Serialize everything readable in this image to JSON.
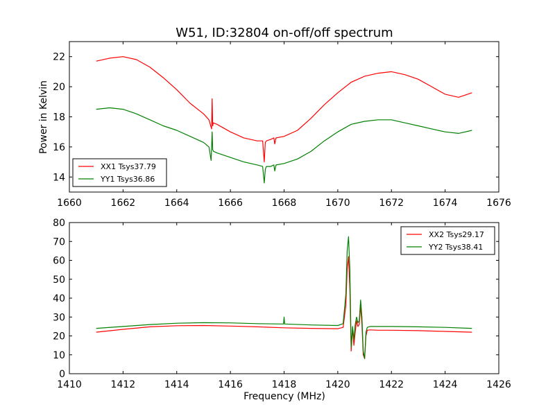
{
  "chart_data": [
    {
      "type": "line",
      "title": "W51, ID:32804 on-off/off spectrum",
      "xlabel": "",
      "ylabel": "Power in Kelvin",
      "xlim": [
        1660,
        1676
      ],
      "ylim": [
        13,
        23
      ],
      "xticks": [
        "1660",
        "1662",
        "1664",
        "1666",
        "1668",
        "1670",
        "1672",
        "1674",
        "1676"
      ],
      "yticks": [
        "14",
        "16",
        "18",
        "20",
        "22"
      ],
      "grid": false,
      "legend_position": "lower-left",
      "series": [
        {
          "name": "XX1 Tsys37.79",
          "color": "#ff0000",
          "x": [
            1661.0,
            1661.5,
            1662.0,
            1662.5,
            1663.0,
            1663.5,
            1664.0,
            1664.5,
            1665.0,
            1665.2,
            1665.3,
            1665.32,
            1665.34,
            1665.36,
            1665.5,
            1666.0,
            1666.5,
            1667.0,
            1667.2,
            1667.26,
            1667.3,
            1667.34,
            1667.5,
            1667.62,
            1667.65,
            1667.7,
            1668.0,
            1668.5,
            1669.0,
            1669.5,
            1670.0,
            1670.5,
            1671.0,
            1671.5,
            1672.0,
            1672.5,
            1673.0,
            1673.5,
            1674.0,
            1674.5,
            1675.0
          ],
          "y": [
            21.7,
            21.9,
            22.0,
            21.8,
            21.3,
            20.6,
            19.8,
            18.9,
            18.2,
            17.8,
            17.2,
            19.2,
            17.4,
            17.6,
            17.5,
            17.0,
            16.6,
            16.4,
            16.4,
            15.0,
            16.3,
            16.4,
            16.5,
            16.6,
            16.2,
            16.6,
            16.7,
            17.1,
            17.9,
            18.8,
            19.6,
            20.3,
            20.7,
            20.9,
            21.0,
            20.8,
            20.5,
            20.0,
            19.5,
            19.3,
            19.6
          ]
        },
        {
          "name": "YY1 Tsys36.86",
          "color": "#008000",
          "x": [
            1661.0,
            1661.5,
            1662.0,
            1662.5,
            1663.0,
            1663.5,
            1664.0,
            1664.5,
            1665.0,
            1665.2,
            1665.28,
            1665.32,
            1665.34,
            1665.38,
            1665.5,
            1666.0,
            1666.5,
            1667.0,
            1667.2,
            1667.26,
            1667.3,
            1667.34,
            1667.5,
            1667.62,
            1667.65,
            1667.7,
            1668.0,
            1668.5,
            1669.0,
            1669.5,
            1670.0,
            1670.5,
            1671.0,
            1671.5,
            1672.0,
            1672.5,
            1673.0,
            1673.5,
            1674.0,
            1674.5,
            1675.0
          ],
          "y": [
            18.5,
            18.6,
            18.5,
            18.2,
            17.8,
            17.4,
            17.1,
            16.7,
            16.3,
            16.0,
            15.1,
            17.0,
            15.8,
            15.7,
            15.6,
            15.3,
            15.0,
            14.8,
            14.7,
            13.6,
            14.5,
            14.7,
            14.7,
            14.8,
            14.4,
            14.8,
            14.9,
            15.2,
            15.7,
            16.4,
            17.0,
            17.5,
            17.7,
            17.8,
            17.8,
            17.6,
            17.4,
            17.2,
            17.0,
            16.9,
            17.1
          ]
        }
      ]
    },
    {
      "type": "line",
      "title": "",
      "xlabel": "Frequency (MHz)",
      "ylabel": "",
      "xlim": [
        1410,
        1426
      ],
      "ylim": [
        0,
        80
      ],
      "xticks": [
        "1410",
        "1412",
        "1414",
        "1416",
        "1418",
        "1420",
        "1422",
        "1424",
        "1426"
      ],
      "yticks": [
        "0",
        "10",
        "20",
        "30",
        "40",
        "50",
        "60",
        "70",
        "80"
      ],
      "grid": false,
      "legend_position": "upper-right",
      "series": [
        {
          "name": "XX2 Tsys29.17",
          "color": "#ff0000",
          "x": [
            1411.0,
            1412.0,
            1413.0,
            1414.0,
            1415.0,
            1416.0,
            1417.0,
            1418.0,
            1419.0,
            1420.0,
            1420.2,
            1420.3,
            1420.35,
            1420.4,
            1420.45,
            1420.5,
            1420.55,
            1420.6,
            1420.65,
            1420.7,
            1420.75,
            1420.8,
            1420.85,
            1420.9,
            1420.95,
            1421.0,
            1421.05,
            1421.1,
            1421.2,
            1421.5,
            1422.0,
            1423.0,
            1424.0,
            1425.0
          ],
          "y": [
            22.0,
            23.5,
            24.8,
            25.4,
            25.5,
            25.2,
            24.8,
            24.3,
            24.0,
            23.8,
            24.5,
            36.0,
            55.0,
            62.0,
            45.0,
            12.0,
            24.0,
            15.0,
            22.0,
            28.0,
            25.0,
            26.0,
            36.0,
            26.0,
            10.0,
            8.0,
            20.0,
            23.0,
            23.2,
            23.0,
            23.0,
            22.8,
            22.4,
            22.0
          ]
        },
        {
          "name": "YY2 Tsys38.41",
          "color": "#008000",
          "x": [
            1411.0,
            1412.0,
            1413.0,
            1414.0,
            1415.0,
            1416.0,
            1417.0,
            1417.98,
            1418.0,
            1418.02,
            1419.0,
            1420.0,
            1420.2,
            1420.3,
            1420.35,
            1420.4,
            1420.45,
            1420.5,
            1420.55,
            1420.6,
            1420.65,
            1420.7,
            1420.75,
            1420.8,
            1420.85,
            1420.9,
            1420.95,
            1421.0,
            1421.05,
            1421.1,
            1421.2,
            1421.5,
            1422.0,
            1423.0,
            1424.0,
            1425.0
          ],
          "y": [
            24.0,
            25.0,
            26.0,
            26.7,
            27.0,
            26.9,
            26.5,
            26.3,
            30.0,
            26.3,
            25.8,
            25.5,
            26.5,
            42.0,
            65.0,
            72.5,
            55.0,
            14.0,
            25.0,
            18.0,
            26.0,
            30.0,
            27.0,
            28.0,
            39.0,
            30.0,
            12.0,
            8.0,
            22.0,
            24.5,
            25.0,
            25.0,
            25.0,
            24.8,
            24.5,
            24.0
          ]
        }
      ]
    }
  ]
}
